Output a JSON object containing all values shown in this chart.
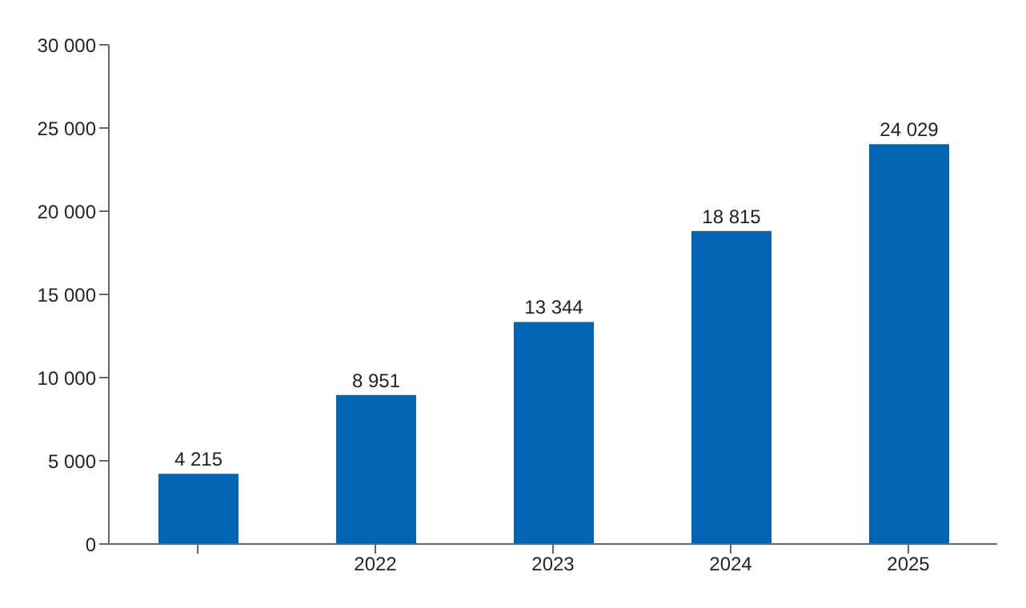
{
  "chart_data": {
    "type": "bar",
    "categories": [
      null,
      "2022",
      "2023",
      "2024",
      "2025"
    ],
    "values": [
      4215,
      8951,
      13344,
      18815,
      24029
    ],
    "value_labels": [
      "4 215",
      "8 951",
      "13 344",
      "18 815",
      "24 029"
    ],
    "color": "#0066b3",
    "ylim": [
      0,
      30000
    ],
    "yticks": [
      0,
      {
        "value": 5000,
        "label": "5 000"
      },
      {
        "value": 10000,
        "label": "10 000"
      },
      {
        "value": 15000,
        "label": "15 000"
      },
      {
        "value": 20000,
        "label": "20 000"
      },
      {
        "value": 25000,
        "label": "25 000"
      },
      {
        "value": 30000,
        "label": "30 000"
      }
    ],
    "grid": false,
    "legend": false
  }
}
